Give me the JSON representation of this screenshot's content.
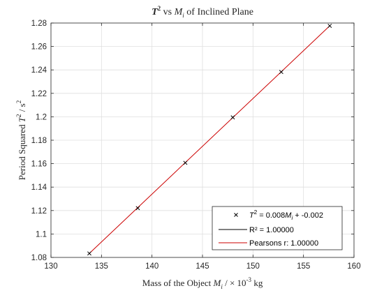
{
  "chart_data": {
    "type": "scatter",
    "title": {
      "part1": "T",
      "part1_sup": "2",
      "part2": " vs ",
      "part3": "M",
      "part3_sub": "i",
      "part4": " of Inclined Plane"
    },
    "xlabel": {
      "part1": "Mass of the Object ",
      "part2": "M",
      "part2_sub": "i",
      "part3": " / × 10",
      "part3_sup": "-3",
      "part4": " kg"
    },
    "ylabel": {
      "part1": "Period Squared ",
      "part2": "T",
      "part2_sup": "2",
      "part3": " / s",
      "part3_sup": "2"
    },
    "xlim": [
      130,
      160
    ],
    "ylim": [
      1.08,
      1.28
    ],
    "xticks": [
      "130",
      "135",
      "140",
      "145",
      "150",
      "155",
      "160"
    ],
    "yticks": [
      "1.08",
      "1.1",
      "1.12",
      "1.14",
      "1.16",
      "1.18",
      "1.2",
      "1.22",
      "1.24",
      "1.26",
      "1.28"
    ],
    "grid": true,
    "legend_position": "bottom-right",
    "series": [
      {
        "name": "T² = 0.008Mi + -0.002",
        "marker": "x",
        "color": "#000000",
        "x": [
          133.8,
          138.6,
          143.3,
          148.0,
          152.8,
          157.6
        ],
        "y": [
          1.0834,
          1.1221,
          1.1607,
          1.1995,
          1.2382,
          1.2776
        ]
      },
      {
        "name": "R² = 1.00000",
        "type": "line",
        "color": "#000000",
        "x": [],
        "y": []
      },
      {
        "name": "Pearsons r: 1.00000",
        "type": "line",
        "color": "#cc0000",
        "x": [
          133.8,
          157.6
        ],
        "y": [
          1.0834,
          1.2776
        ]
      }
    ],
    "legend": {
      "entry1_prefix": "T",
      "entry1_sup": "2",
      "entry1_mid": " = 0.008",
      "entry1_var": "M",
      "entry1_sub": "i",
      "entry1_suffix": " + -0.002",
      "entry2": "R² = 1.00000",
      "entry3": "Pearsons r: 1.00000"
    }
  }
}
